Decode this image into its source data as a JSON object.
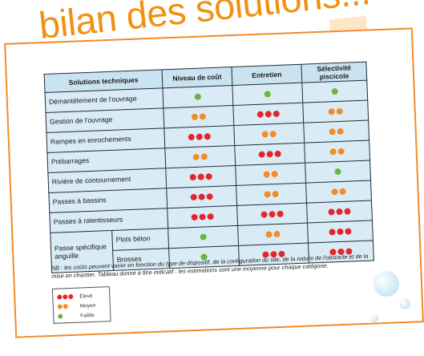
{
  "title": "bilan des solutions...",
  "table": {
    "headers": [
      "Solutions techniques",
      "Niveau de coût",
      "Entretien",
      "Sélectivité piscicole"
    ],
    "rows": [
      {
        "label": "Démantèlement de l'ouvrage",
        "cost": "faible",
        "maintenance": "faible",
        "selectivity": "faible"
      },
      {
        "label": "Gestion de l'ouvrage",
        "cost": "moyen",
        "maintenance": "eleve",
        "selectivity": "moyen"
      },
      {
        "label": "Rampes en enrochements",
        "cost": "eleve",
        "maintenance": "moyen",
        "selectivity": "moyen"
      },
      {
        "label": "Prébarrages",
        "cost": "moyen",
        "maintenance": "eleve",
        "selectivity": "moyen"
      },
      {
        "label": "Rivière de contournement",
        "cost": "eleve",
        "maintenance": "moyen",
        "selectivity": "faible"
      },
      {
        "label": "Passes à bassins",
        "cost": "eleve",
        "maintenance": "moyen",
        "selectivity": "moyen"
      },
      {
        "label": "Passes à ralentisseurs",
        "cost": "eleve",
        "maintenance": "eleve",
        "selectivity": "eleve"
      }
    ],
    "group": {
      "label": "Passe spécifique anguille",
      "subrows": [
        {
          "label": "Plots béton",
          "cost": "faible",
          "maintenance": "moyen",
          "selectivity": "eleve"
        },
        {
          "label": "Brosses",
          "cost": "faible",
          "maintenance": "eleve",
          "selectivity": "eleve"
        }
      ]
    }
  },
  "note": "NB : les coûts peuvent varier en fonction du type de dispositif, de la configuration du site, de la nature de l'obstacle et de la mise en chantier. Tableau donné à titre indicatif : les estimations sont une moyenne pour chaque catégorie.",
  "legend": {
    "eleve": {
      "label": "Élevé",
      "count": 3,
      "color": "#e3262b"
    },
    "moyen": {
      "label": "Moyen",
      "count": 2,
      "color": "#f28c28"
    },
    "faible": {
      "label": "Faible",
      "count": 1,
      "color": "#6cb33f"
    }
  },
  "colors": {
    "accent": "#f29111",
    "header_bg": "#c9e3f0",
    "row_bg": "#d9ecf6"
  }
}
